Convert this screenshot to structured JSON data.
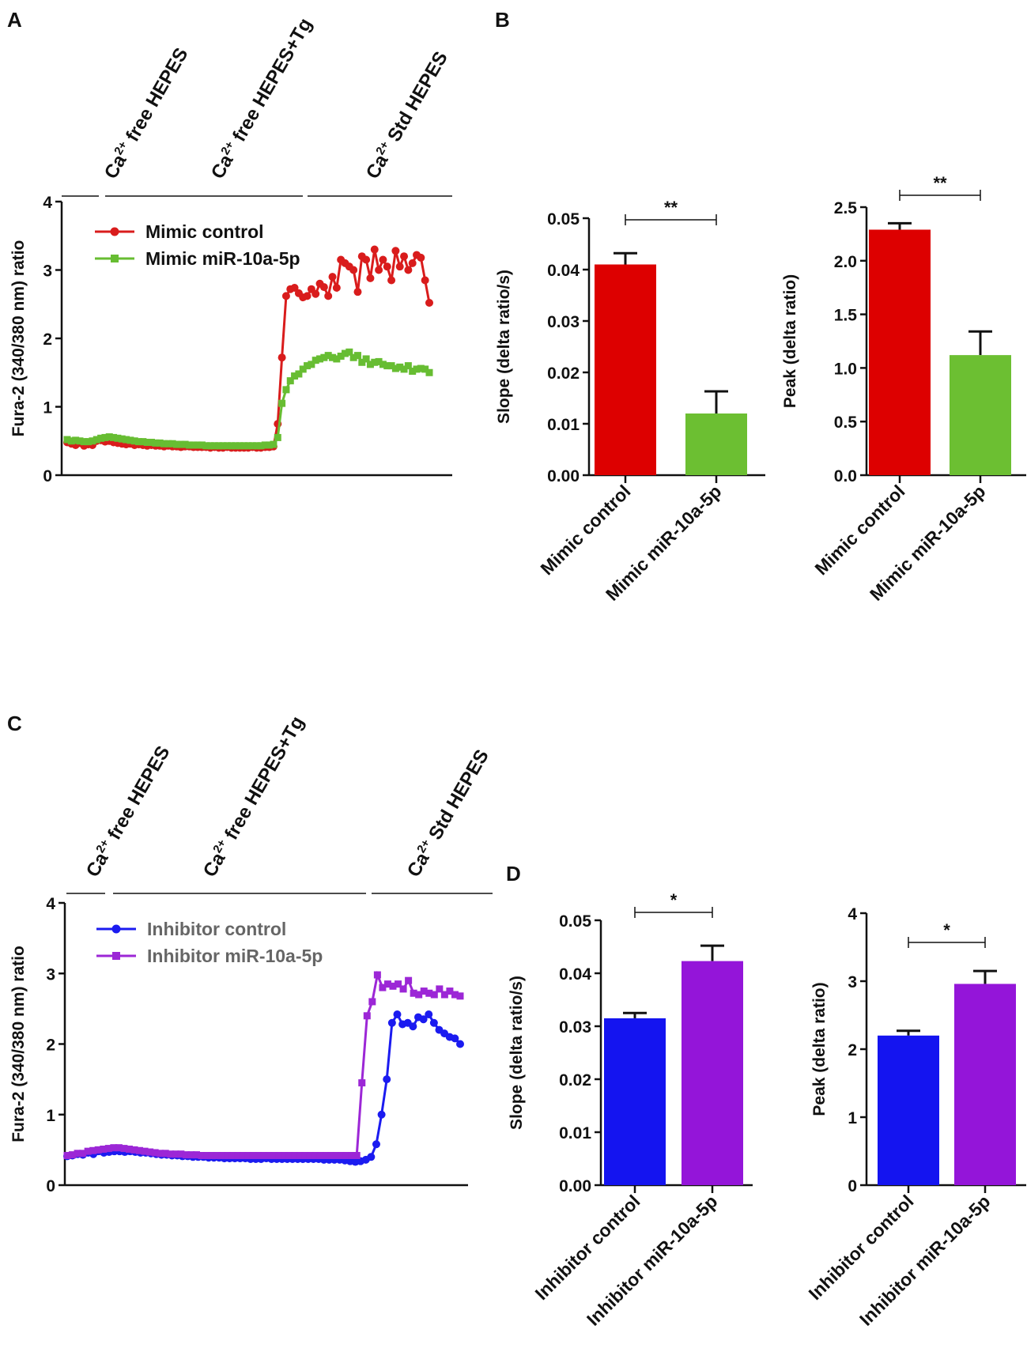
{
  "panels": {
    "A": "A",
    "B": "B",
    "C": "C",
    "D": "D"
  },
  "chart_data": [
    {
      "id": "A",
      "type": "line",
      "ylabel": "Fura-2 (340/380 nm) ratio",
      "ylim": [
        0,
        4
      ],
      "yticks": [
        "0",
        "1",
        "2",
        "3",
        "4"
      ],
      "conditions": [
        {
          "label": "Ca2+ free HEPES",
          "base": "Ca",
          "sup": "2+",
          "rest": " free HEPES"
        },
        {
          "label": "Ca2+ free HEPES+Tg",
          "base": "Ca",
          "sup": "2+",
          "rest": " free HEPES+Tg"
        },
        {
          "label": "Ca2+ Std HEPES",
          "base": "Ca",
          "sup": "2+",
          "rest": " Std HEPES"
        }
      ],
      "series": [
        {
          "name": "Mimic control",
          "color": "#d91c1c",
          "marker": "circle",
          "values": [
            0.48,
            0.46,
            0.44,
            0.47,
            0.43,
            0.45,
            0.44,
            0.5,
            0.51,
            0.49,
            0.5,
            0.48,
            0.47,
            0.46,
            0.45,
            0.46,
            0.44,
            0.45,
            0.44,
            0.43,
            0.44,
            0.43,
            0.43,
            0.42,
            0.43,
            0.42,
            0.42,
            0.41,
            0.42,
            0.42,
            0.41,
            0.41,
            0.41,
            0.41,
            0.4,
            0.41,
            0.4,
            0.4,
            0.41,
            0.4,
            0.4,
            0.4,
            0.4,
            0.4,
            0.41,
            0.4,
            0.4,
            0.41,
            0.41,
            0.42,
            0.75,
            1.72,
            2.62,
            2.72,
            2.74,
            2.66,
            2.6,
            2.62,
            2.72,
            2.65,
            2.8,
            2.75,
            2.62,
            2.9,
            2.74,
            3.15,
            3.1,
            3.05,
            3.0,
            2.68,
            3.2,
            3.15,
            2.88,
            3.3,
            3.0,
            3.15,
            3.05,
            2.85,
            3.28,
            3.05,
            3.2,
            3.0,
            3.1,
            3.22,
            3.18,
            2.85,
            2.52
          ]
        },
        {
          "name": "Mimic miR-10a-5p",
          "color": "#67bd32",
          "marker": "square",
          "values": [
            0.52,
            0.5,
            0.51,
            0.5,
            0.49,
            0.49,
            0.5,
            0.52,
            0.54,
            0.55,
            0.56,
            0.55,
            0.54,
            0.53,
            0.52,
            0.51,
            0.5,
            0.49,
            0.49,
            0.48,
            0.48,
            0.47,
            0.47,
            0.46,
            0.46,
            0.46,
            0.45,
            0.45,
            0.45,
            0.44,
            0.44,
            0.44,
            0.44,
            0.43,
            0.43,
            0.43,
            0.43,
            0.43,
            0.43,
            0.43,
            0.43,
            0.43,
            0.43,
            0.43,
            0.43,
            0.43,
            0.43,
            0.44,
            0.44,
            0.45,
            0.55,
            1.05,
            1.25,
            1.38,
            1.45,
            1.48,
            1.55,
            1.6,
            1.62,
            1.68,
            1.7,
            1.72,
            1.75,
            1.72,
            1.7,
            1.74,
            1.78,
            1.8,
            1.72,
            1.75,
            1.65,
            1.7,
            1.62,
            1.65,
            1.66,
            1.62,
            1.6,
            1.6,
            1.56,
            1.58,
            1.55,
            1.6,
            1.52,
            1.55,
            1.56,
            1.55,
            1.5
          ]
        }
      ]
    },
    {
      "id": "B1",
      "type": "bar",
      "categories": [
        "Mimic control",
        "Mimic miR-10a-5p"
      ],
      "values": [
        0.041,
        0.012
      ],
      "errors": [
        0.0022,
        0.0043
      ],
      "colors": [
        "#dd0000",
        "#6cbf32"
      ],
      "ylabel": "Slope (delta ratio/s)",
      "ylim": [
        0,
        0.05
      ],
      "yticks": [
        "0.00",
        "0.01",
        "0.02",
        "0.03",
        "0.04",
        "0.05"
      ],
      "significance": "**"
    },
    {
      "id": "B2",
      "type": "bar",
      "categories": [
        "Mimic control",
        "Mimic miR-10a-5p"
      ],
      "values": [
        2.29,
        1.12
      ],
      "errors": [
        0.06,
        0.22
      ],
      "colors": [
        "#dd0000",
        "#6cbf32"
      ],
      "ylabel": "Peak (delta ratio)",
      "ylim": [
        0,
        2.5
      ],
      "yticks": [
        "0.0",
        "0.5",
        "1.0",
        "1.5",
        "2.0",
        "2.5"
      ],
      "significance": "**"
    },
    {
      "id": "C",
      "type": "line",
      "ylabel": "Fura-2 (340/380 nm) ratio",
      "ylim": [
        0,
        4
      ],
      "yticks": [
        "0",
        "1",
        "2",
        "3",
        "4"
      ],
      "conditions": [
        {
          "label": "Ca2+ free HEPES",
          "base": "Ca",
          "sup": "2+",
          "rest": " free HEPES"
        },
        {
          "label": "Ca2+ free HEPES+Tg",
          "base": "Ca",
          "sup": "2+",
          "rest": " free HEPES+Tg"
        },
        {
          "label": "Ca2+ Std HEPES",
          "base": "Ca",
          "sup": "2+",
          "rest": " Std HEPES"
        }
      ],
      "series": [
        {
          "name": "Inhibitor control",
          "color": "#1b1bf0",
          "marker": "circle",
          "values": [
            0.41,
            0.42,
            0.44,
            0.43,
            0.46,
            0.44,
            0.48,
            0.46,
            0.47,
            0.48,
            0.48,
            0.47,
            0.48,
            0.47,
            0.46,
            0.46,
            0.45,
            0.44,
            0.43,
            0.43,
            0.42,
            0.42,
            0.41,
            0.41,
            0.4,
            0.4,
            0.4,
            0.39,
            0.39,
            0.39,
            0.38,
            0.38,
            0.38,
            0.38,
            0.38,
            0.37,
            0.37,
            0.37,
            0.38,
            0.37,
            0.37,
            0.37,
            0.37,
            0.37,
            0.37,
            0.37,
            0.37,
            0.37,
            0.37,
            0.36,
            0.36,
            0.36,
            0.36,
            0.35,
            0.34,
            0.33,
            0.34,
            0.36,
            0.4,
            0.58,
            1.0,
            1.5,
            2.3,
            2.42,
            2.28,
            2.3,
            2.25,
            2.38,
            2.35,
            2.42,
            2.3,
            2.2,
            2.15,
            2.1,
            2.08,
            2.0
          ]
        },
        {
          "name": "Inhibitor miR-10a-5p",
          "color": "#9c27d6",
          "marker": "square",
          "values": [
            0.42,
            0.43,
            0.45,
            0.45,
            0.48,
            0.49,
            0.5,
            0.51,
            0.52,
            0.53,
            0.53,
            0.52,
            0.51,
            0.5,
            0.49,
            0.48,
            0.47,
            0.46,
            0.45,
            0.45,
            0.44,
            0.44,
            0.44,
            0.43,
            0.43,
            0.43,
            0.42,
            0.42,
            0.42,
            0.42,
            0.42,
            0.42,
            0.42,
            0.42,
            0.42,
            0.42,
            0.42,
            0.42,
            0.42,
            0.42,
            0.42,
            0.42,
            0.42,
            0.42,
            0.42,
            0.42,
            0.42,
            0.42,
            0.42,
            0.42,
            0.42,
            0.42,
            0.42,
            0.42,
            0.42,
            0.42,
            0.42,
            1.45,
            2.4,
            2.6,
            2.98,
            2.8,
            2.85,
            2.82,
            2.85,
            2.78,
            2.9,
            2.72,
            2.7,
            2.75,
            2.72,
            2.7,
            2.78,
            2.7,
            2.75,
            2.7,
            2.68
          ]
        }
      ]
    },
    {
      "id": "D1",
      "type": "bar",
      "categories": [
        "Inhibitor control",
        "Inhibitor miR-10a-5p"
      ],
      "values": [
        0.0315,
        0.0423
      ],
      "errors": [
        0.001,
        0.0029
      ],
      "colors": [
        "#1414f0",
        "#9415d9"
      ],
      "ylabel": "Slope (delta ratio/s)",
      "ylim": [
        0,
        0.05
      ],
      "yticks": [
        "0.00",
        "0.01",
        "0.02",
        "0.03",
        "0.04",
        "0.05"
      ],
      "significance": "*"
    },
    {
      "id": "D2",
      "type": "bar",
      "categories": [
        "Inhibitor control",
        "Inhibitor miR-10a-5p"
      ],
      "values": [
        2.2,
        2.96
      ],
      "errors": [
        0.07,
        0.19
      ],
      "colors": [
        "#1414f0",
        "#9415d9"
      ],
      "ylabel": "Peak (delta ratio)",
      "ylim": [
        0,
        4
      ],
      "yticks": [
        "0",
        "1",
        "2",
        "3",
        "4"
      ],
      "significance": "*"
    }
  ]
}
